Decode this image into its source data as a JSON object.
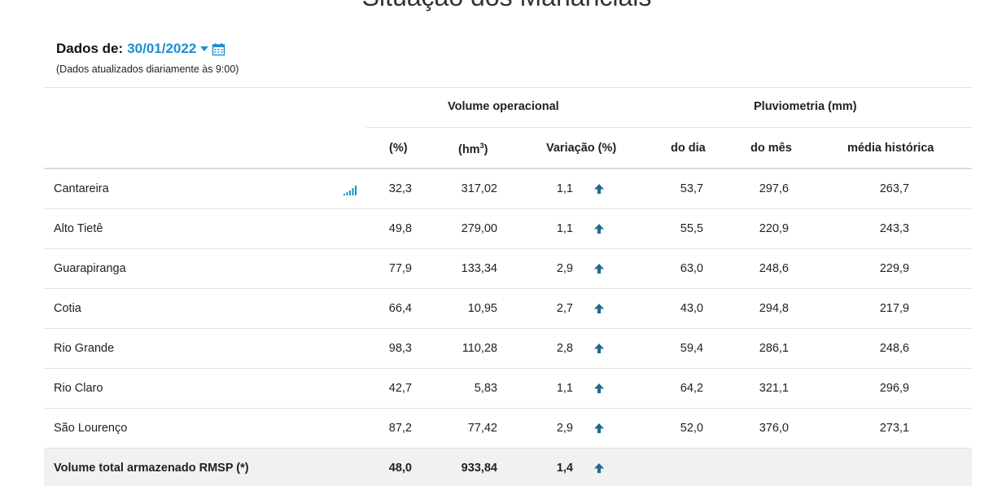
{
  "page": {
    "title": "Situação dos Mananciais"
  },
  "filter": {
    "label": "Dados de:",
    "date": "30/01/2022",
    "note": "(Dados atualizados diariamente às 9:00)"
  },
  "table": {
    "groups": {
      "volume": "Volume operacional",
      "pluvio": "Pluviometria (mm)"
    },
    "columns": {
      "pct": "(%)",
      "hm_prefix": "(hm",
      "hm_sup": "3",
      "hm_suffix": ")",
      "var": "Variação (%)",
      "dia": "do dia",
      "mes": "do mês",
      "hist": "média histórica"
    },
    "rows": [
      {
        "name": "Cantareira",
        "pct": "32,3",
        "hm": "317,02",
        "var": "1,1",
        "trend": "up",
        "dia": "53,7",
        "mes": "297,6",
        "hist": "263,7"
      },
      {
        "name": "Alto Tietê",
        "pct": "49,8",
        "hm": "279,00",
        "var": "1,1",
        "trend": "up",
        "dia": "55,5",
        "mes": "220,9",
        "hist": "243,3"
      },
      {
        "name": "Guarapiranga",
        "pct": "77,9",
        "hm": "133,34",
        "var": "2,9",
        "trend": "up",
        "dia": "63,0",
        "mes": "248,6",
        "hist": "229,9"
      },
      {
        "name": "Cotia",
        "pct": "66,4",
        "hm": "10,95",
        "var": "2,7",
        "trend": "up",
        "dia": "43,0",
        "mes": "294,8",
        "hist": "217,9"
      },
      {
        "name": "Rio Grande",
        "pct": "98,3",
        "hm": "110,28",
        "var": "2,8",
        "trend": "up",
        "dia": "59,4",
        "mes": "286,1",
        "hist": "248,6"
      },
      {
        "name": "Rio Claro",
        "pct": "42,7",
        "hm": "5,83",
        "var": "1,1",
        "trend": "up",
        "dia": "64,2",
        "mes": "321,1",
        "hist": "296,9"
      },
      {
        "name": "São Lourenço",
        "pct": "87,2",
        "hm": "77,42",
        "var": "2,9",
        "trend": "up",
        "dia": "52,0",
        "mes": "376,0",
        "hist": "273,1"
      }
    ],
    "total": {
      "name": "Volume total armazenado RMSP (*)",
      "pct": "48,0",
      "hm": "933,84",
      "var": "1,4",
      "trend": "up"
    }
  },
  "icons": {
    "calendar": "calendar-icon",
    "trend": "arrow-up-icon",
    "chart": "bar-chart-icon"
  },
  "colors": {
    "accent": "#1a8fd0",
    "arrow": "#1d6a8f",
    "divider": "#e4e4e4",
    "total_bg": "#f1f1f1"
  }
}
